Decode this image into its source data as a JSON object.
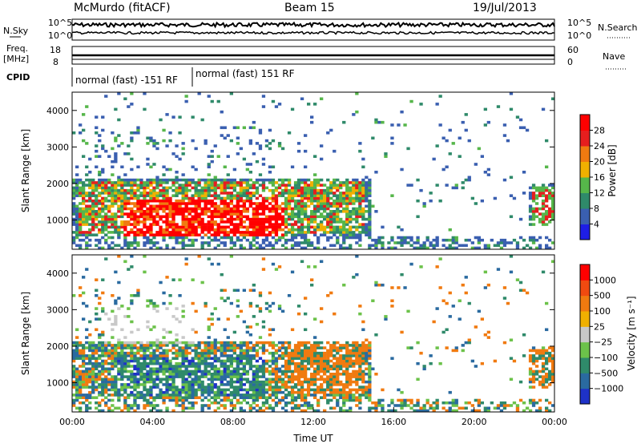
{
  "header": {
    "title": "McMurdo (fitACF)",
    "beam": "Beam 15",
    "date": "19/Jul/2013"
  },
  "top_panel": {
    "left_label": "N.Sky",
    "right_label": "N.Search",
    "left_ticks": [
      "10^5",
      "10^0"
    ],
    "right_ticks": [
      "10^5",
      "10^0"
    ]
  },
  "freq_panel": {
    "left_label_1": "Freq.",
    "left_label_2": "[MHz]",
    "left_ticks": [
      "18",
      "8"
    ],
    "right_label": "Nave",
    "right_ticks": [
      "60",
      "0"
    ]
  },
  "cpid": {
    "label": "CPID",
    "segments": [
      {
        "text": "normal (fast) -151 RF",
        "start_hour": 0.0
      },
      {
        "text": "normal (fast) 151 RF",
        "start_hour": 6.0
      }
    ]
  },
  "chart_data": [
    {
      "type": "heatmap",
      "name": "power",
      "ylabel": "Slant Range [km]",
      "xlabel": "",
      "xlim": [
        0,
        24
      ],
      "ylim": [
        200,
        4500
      ],
      "yticks": [
        "1000",
        "2000",
        "3000",
        "4000"
      ],
      "colorbar_label": "Power [dB]",
      "colorbar_ticks": [
        "4",
        "8",
        "12",
        "16",
        "20",
        "24",
        "28"
      ],
      "colorbar_colors": [
        "#1e1ee6",
        "#3a5fb0",
        "#2f8a6a",
        "#56b64a",
        "#f0b000",
        "#f07a10",
        "#e61e1e",
        "#ff0000"
      ]
    },
    {
      "type": "heatmap",
      "name": "velocity",
      "ylabel": "Slant Range [km]",
      "xlabel": "Time UT",
      "xlim": [
        0,
        24
      ],
      "ylim": [
        200,
        4500
      ],
      "yticks": [
        "1000",
        "2000",
        "3000",
        "4000"
      ],
      "xticks": [
        "00:00",
        "04:00",
        "08:00",
        "12:00",
        "16:00",
        "20:00",
        "00:00"
      ],
      "colorbar_label": "Velocity [m s⁻¹]",
      "colorbar_ticks": [
        "1000",
        "500",
        "100",
        "25",
        "−25",
        "−100",
        "−500",
        "−1000"
      ],
      "colorbar_colors": [
        "#1e32c8",
        "#2a6aa0",
        "#2f8a6a",
        "#6cc24a",
        "#c8c8c8",
        "#f0b000",
        "#f07a10",
        "#f04a10",
        "#ff0000"
      ]
    }
  ]
}
